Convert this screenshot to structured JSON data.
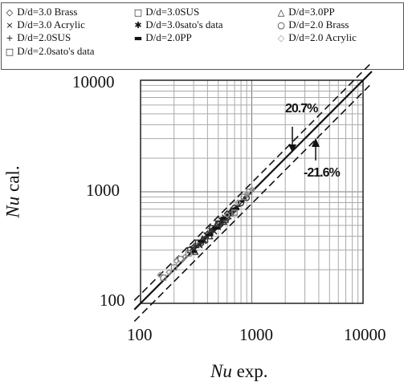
{
  "chart_data": {
    "type": "scatter",
    "xlabel_italic": "Nu",
    "xlabel_rest": " exp.",
    "ylabel_italic": "Nu",
    "ylabel_rest": " cal.",
    "xscale": "log",
    "yscale": "log",
    "xlim": [
      100,
      10000
    ],
    "ylim": [
      100,
      10000
    ],
    "grid": true,
    "legend_placement": "top",
    "x_ticks": [
      "100",
      "1000",
      "10000"
    ],
    "y_ticks": [
      "10000",
      "1000",
      "100"
    ],
    "reference_lines": [
      {
        "name": "y = x",
        "style": "solid",
        "factor": 1.0
      },
      {
        "name": "+20.7%",
        "style": "dashed",
        "factor": 1.207
      },
      {
        "name": "-21.6%",
        "style": "dashed",
        "factor": 0.784
      }
    ],
    "annotations": [
      {
        "text": "20.7%"
      },
      {
        "text": "-21.6%"
      }
    ],
    "series": [
      {
        "name": "D/d=3.0 Brass",
        "marker": "◇",
        "color": "#222222",
        "points": [
          [
            300,
            320
          ],
          [
            350,
            340
          ],
          [
            400,
            420
          ],
          [
            450,
            460
          ],
          [
            520,
            500
          ],
          [
            600,
            640
          ],
          [
            700,
            690
          ]
        ]
      },
      {
        "name": "D/d=3.0SUS",
        "marker": "□",
        "color": "#333333",
        "points": [
          [
            280,
            300
          ],
          [
            330,
            350
          ],
          [
            380,
            370
          ],
          [
            440,
            470
          ],
          [
            500,
            520
          ],
          [
            580,
            560
          ]
        ]
      },
      {
        "name": "D/d=3.0PP",
        "marker": "△",
        "color": "#333333",
        "points": [
          [
            310,
            290
          ],
          [
            360,
            380
          ],
          [
            420,
            400
          ],
          [
            480,
            510
          ],
          [
            560,
            540
          ],
          [
            650,
            680
          ]
        ]
      },
      {
        "name": "D/d=3.0 Acrylic",
        "marker": "×",
        "color": "#222222",
        "points": [
          [
            290,
            310
          ],
          [
            340,
            330
          ],
          [
            390,
            410
          ],
          [
            460,
            440
          ],
          [
            530,
            560
          ],
          [
            620,
            600
          ]
        ]
      },
      {
        "name": "D/d=3.0sato's data",
        "marker": "✱",
        "color": "#333333",
        "points": [
          [
            320,
            330
          ],
          [
            370,
            360
          ],
          [
            430,
            450
          ],
          [
            500,
            480
          ],
          [
            570,
            590
          ]
        ]
      },
      {
        "name": "D/d=2.0 Brass",
        "marker": "○",
        "color": "#333333",
        "points": [
          [
            500,
            510
          ],
          [
            600,
            580
          ],
          [
            700,
            720
          ],
          [
            800,
            790
          ],
          [
            900,
            880
          ]
        ]
      },
      {
        "name": "D/d=2.0SUS",
        "marker": "+",
        "color": "#222222",
        "points": [
          [
            450,
            470
          ],
          [
            550,
            530
          ],
          [
            650,
            670
          ],
          [
            750,
            740
          ],
          [
            850,
            860
          ]
        ]
      },
      {
        "name": "D/d=2.0PP",
        "marker": "▬",
        "color": "#111111",
        "points": [
          [
            300,
            290
          ],
          [
            350,
            360
          ],
          [
            420,
            410
          ],
          [
            480,
            470
          ],
          [
            560,
            580
          ],
          [
            640,
            620
          ],
          [
            720,
            700
          ],
          [
            800,
            820
          ]
        ]
      },
      {
        "name": "D/d=2.0 Acrylic",
        "marker": "◇",
        "color": "#999999",
        "points": [
          [
            150,
            180
          ],
          [
            180,
            190
          ],
          [
            210,
            240
          ],
          [
            250,
            260
          ],
          [
            600,
            620
          ],
          [
            750,
            800
          ],
          [
            900,
            950
          ],
          [
            1000,
            1050
          ]
        ]
      },
      {
        "name": "D/d=2.0sato's data",
        "marker": "□",
        "color": "#888888",
        "points": [
          [
            160,
            170
          ],
          [
            200,
            210
          ],
          [
            230,
            250
          ],
          [
            270,
            280
          ],
          [
            700,
            650
          ],
          [
            850,
            900
          ],
          [
            950,
            1000
          ]
        ]
      }
    ]
  }
}
